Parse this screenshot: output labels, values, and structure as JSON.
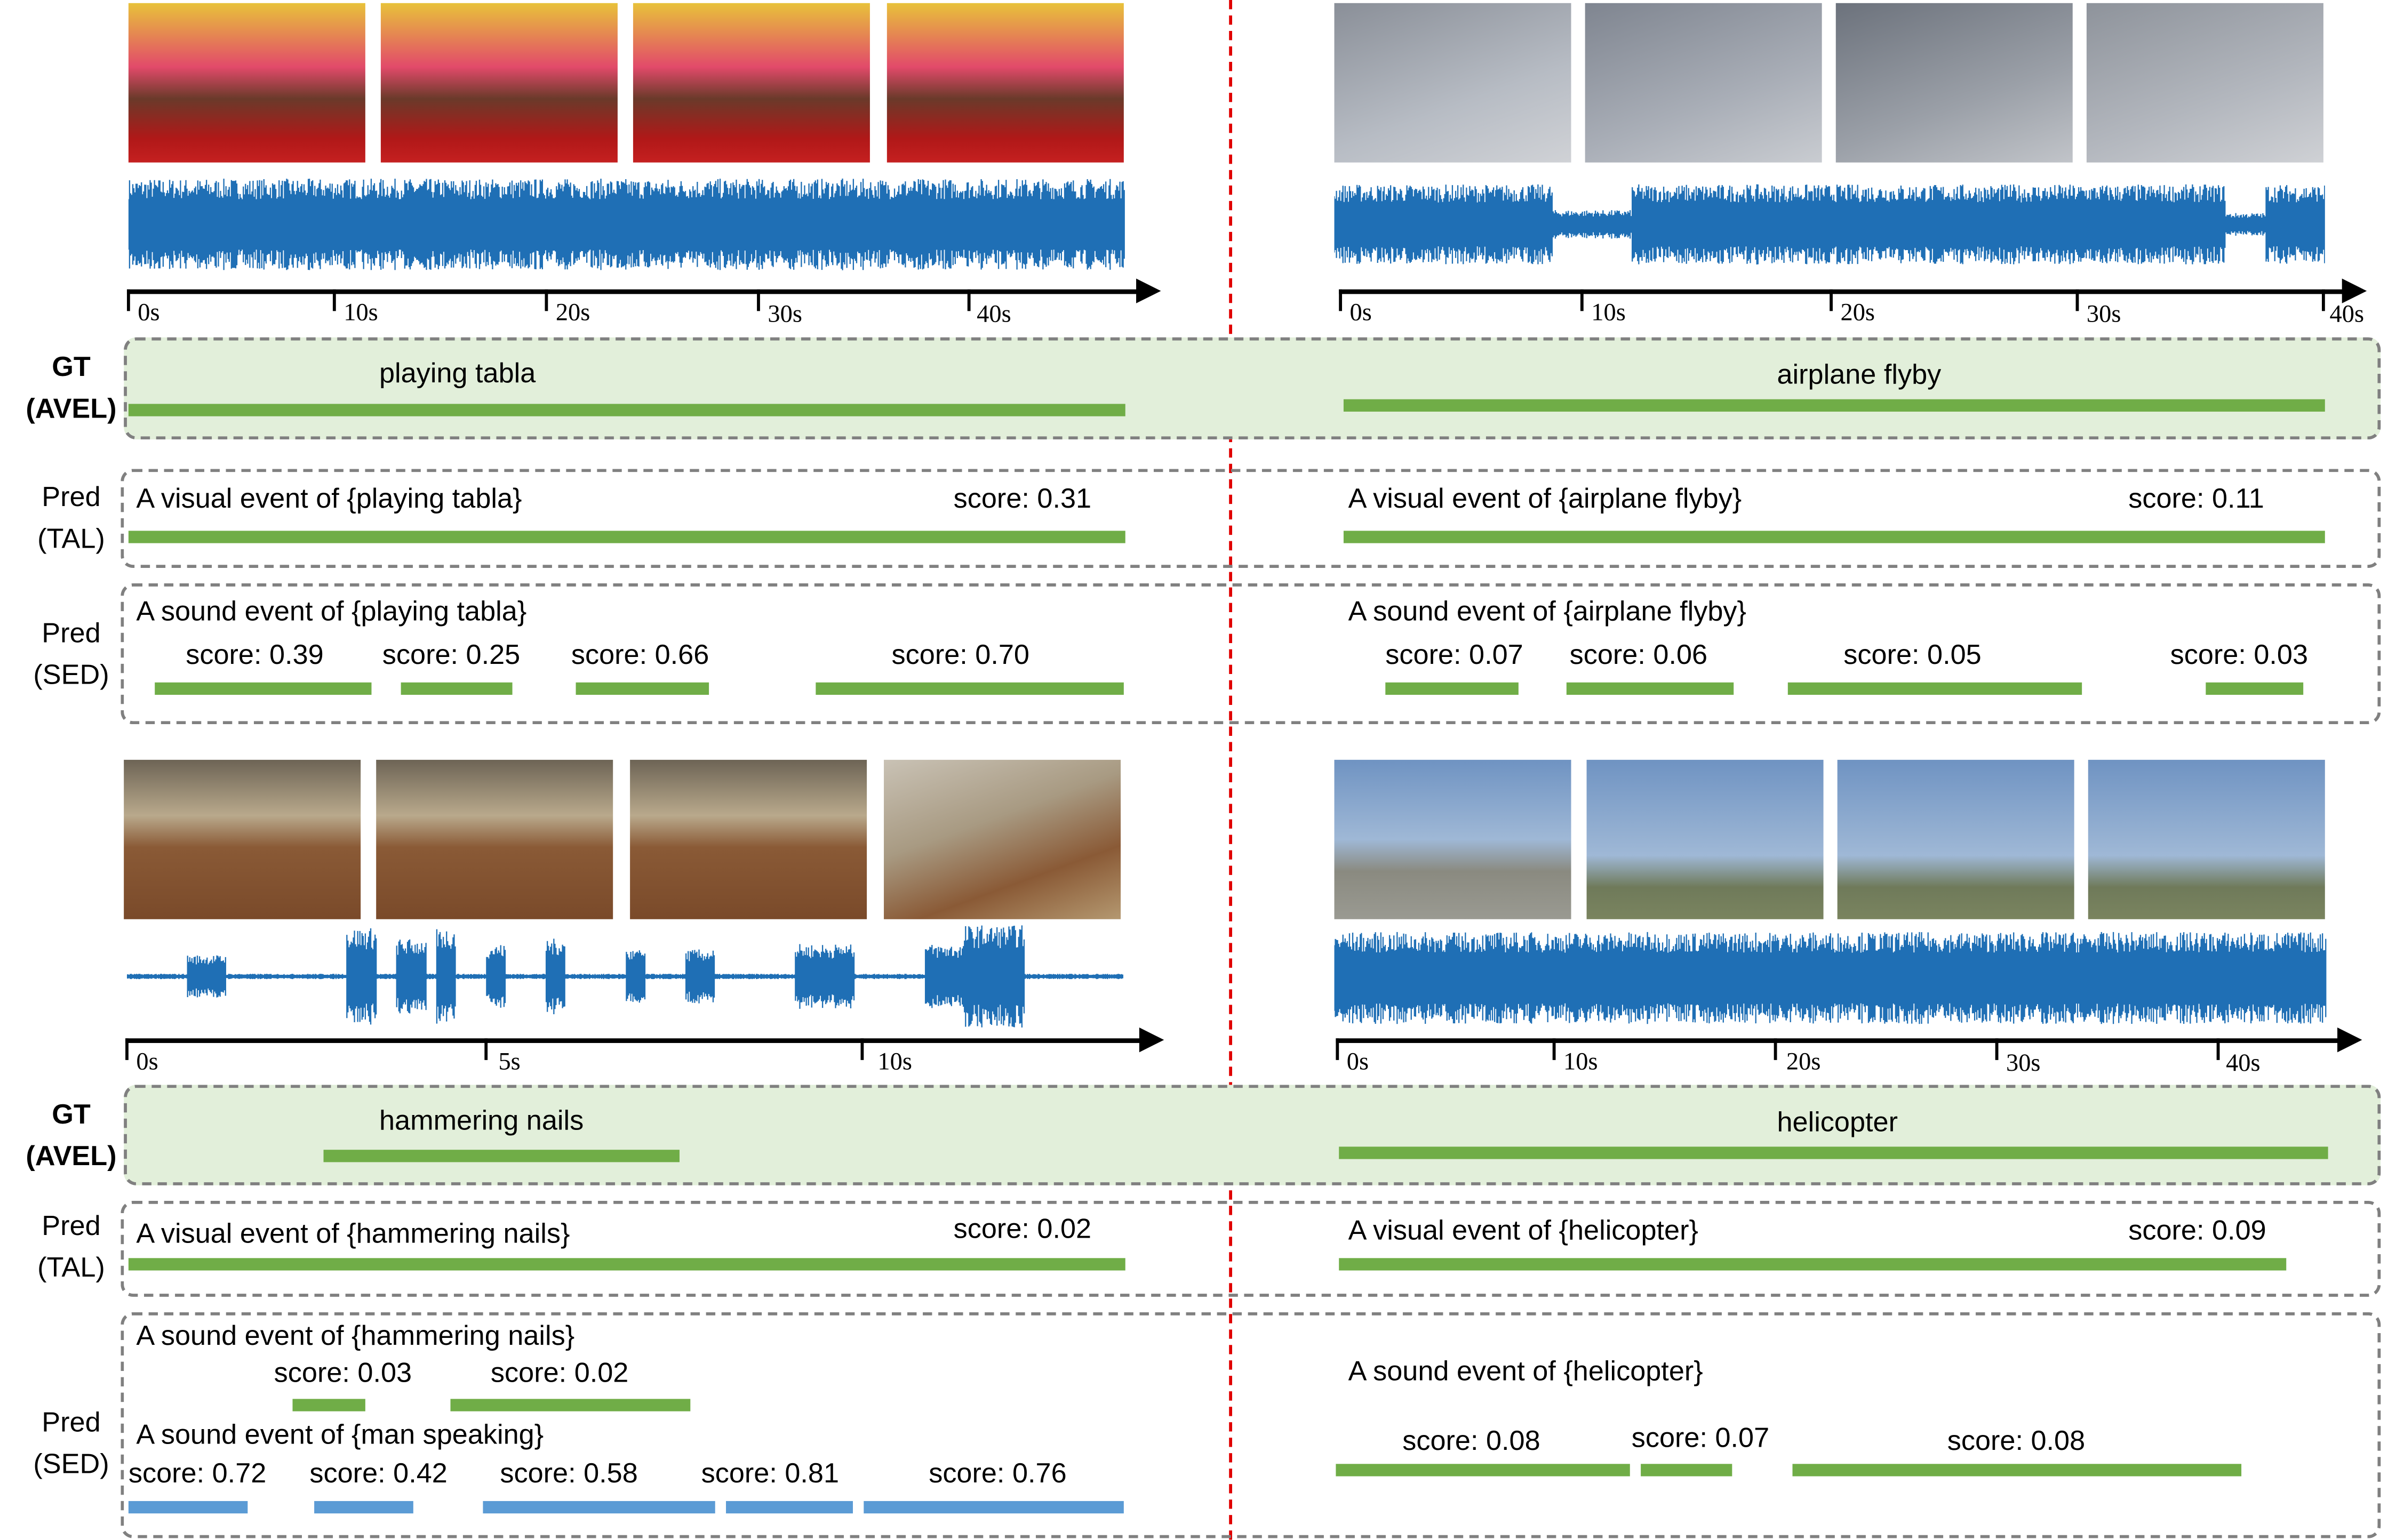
{
  "colors": {
    "green": "#70ad47",
    "blue": "#5b9bd5",
    "gt_background": "#e2efda",
    "waveform": "#1f6fb5",
    "divider": "#e00000"
  },
  "row_labels": {
    "gt": {
      "line1": "GT",
      "line2": "(AVEL)"
    },
    "tal": {
      "line1": "Pred",
      "line2": "(TAL)"
    },
    "sed": {
      "line1": "Pred",
      "line2": "(SED)"
    }
  },
  "examples": {
    "tabla": {
      "axis_ticks": [
        "0s",
        "10s",
        "20s",
        "30s",
        "40s"
      ],
      "gt_label": "playing tabla",
      "tal": {
        "caption": "A visual event of {playing tabla}",
        "score": "score: 0.31"
      },
      "sed": {
        "caption": "A sound event of {playing tabla}",
        "scores": [
          "score: 0.39",
          "score: 0.25",
          "score: 0.66",
          "score: 0.70"
        ]
      }
    },
    "airplane": {
      "axis_ticks": [
        "0s",
        "10s",
        "20s",
        "30s",
        "40s"
      ],
      "gt_label": "airplane flyby",
      "tal": {
        "caption": "A visual event of {airplane flyby}",
        "score": "score: 0.11"
      },
      "sed": {
        "caption": "A sound event of {airplane flyby}",
        "scores": [
          "score: 0.07",
          "score: 0.06",
          "score: 0.05",
          "score: 0.03"
        ]
      }
    },
    "hammering": {
      "axis_ticks": [
        "0s",
        "5s",
        "10s"
      ],
      "gt_label": "hammering nails",
      "tal": {
        "caption": "A visual event of {hammering nails}",
        "score": "score: 0.02"
      },
      "sed": [
        {
          "caption": "A sound event of {hammering nails}",
          "scores": [
            "score: 0.03",
            "score: 0.02"
          ],
          "color": "green"
        },
        {
          "caption": "A sound event of {man speaking}",
          "scores": [
            "score: 0.72",
            "score: 0.42",
            "score: 0.58",
            "score: 0.81",
            "score: 0.76"
          ],
          "color": "blue"
        }
      ]
    },
    "helicopter": {
      "axis_ticks": [
        "0s",
        "10s",
        "20s",
        "30s",
        "40s"
      ],
      "gt_label": "helicopter",
      "tal": {
        "caption": "A visual event of {helicopter}",
        "score": "score: 0.09"
      },
      "sed": {
        "caption": "A sound event of {helicopter}",
        "scores": [
          "score: 0.08",
          "score: 0.07",
          "score: 0.08"
        ]
      }
    }
  }
}
